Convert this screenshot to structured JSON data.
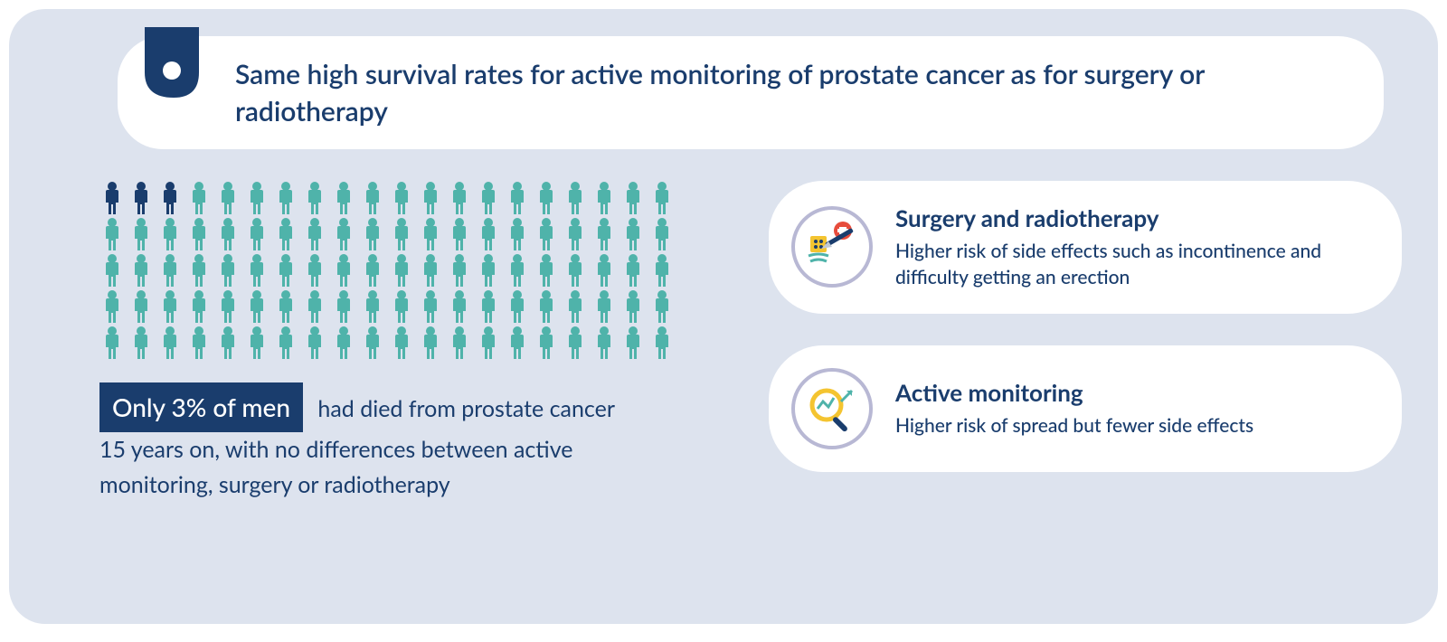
{
  "header": {
    "title": "Same high survival rates for active monitoring of prostate cancer as for surgery or radiotherapy"
  },
  "colors": {
    "background": "#dde3ee",
    "primary": "#1a3d6d",
    "icon_teal": "#4fb3aa",
    "icon_dark": "#1a3d6d",
    "pill_bg": "#ffffff",
    "icon_border": "#b8b8d4",
    "yellow": "#f4c430",
    "red": "#e74c3c"
  },
  "pictograph": {
    "total": 100,
    "highlighted": 3,
    "per_row": 20,
    "color_normal": "#4fb3aa",
    "color_highlight": "#1a3d6d"
  },
  "stat": {
    "highlight": "Only 3% of men",
    "rest": "had died from prostate cancer 15 years on, with no differences between active monitoring, surgery or radiotherapy"
  },
  "boxes": [
    {
      "title": "Surgery and radiotherapy",
      "body": "Higher risk of side effects such as incontinence and difficulty getting an erection",
      "icon": "surgery"
    },
    {
      "title": "Active monitoring",
      "body": "Higher risk of spread but fewer side effects",
      "icon": "magnify"
    }
  ]
}
